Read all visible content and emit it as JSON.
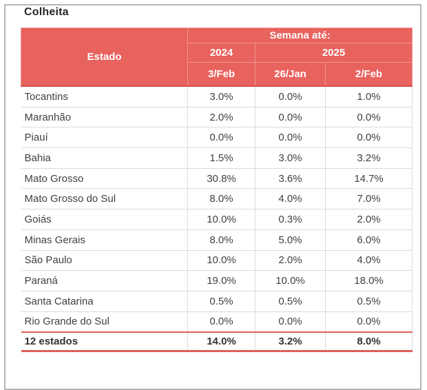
{
  "title": "Colheita",
  "colors": {
    "header_bg": "#E8625E",
    "header_divider": "#F09592",
    "accent_red_rule": "#DD5F5B",
    "grid_gray": "#DBDBDB",
    "body_text": "#404040",
    "frame_gray": "#B5B5B5"
  },
  "chart_data": {
    "type": "table",
    "title": "Colheita",
    "column_groups": {
      "semana_label": "Semana até:",
      "years": [
        "2024",
        "2025"
      ]
    },
    "columns": [
      "Estado",
      "3/Feb",
      "26/Jan",
      "2/Feb"
    ],
    "rows": [
      [
        "Tocantins",
        "3.0%",
        "0.0%",
        "1.0%"
      ],
      [
        "Maranhão",
        "2.0%",
        "0.0%",
        "0.0%"
      ],
      [
        "Piauí",
        "0.0%",
        "0.0%",
        "0.0%"
      ],
      [
        "Bahia",
        "1.5%",
        "3.0%",
        "3.2%"
      ],
      [
        "Mato Grosso",
        "30.8%",
        "3.6%",
        "14.7%"
      ],
      [
        "Mato Grosso do Sul",
        "8.0%",
        "4.0%",
        "7.0%"
      ],
      [
        "Goiás",
        "10.0%",
        "0.3%",
        "2.0%"
      ],
      [
        "Minas Gerais",
        "8.0%",
        "5.0%",
        "6.0%"
      ],
      [
        "São Paulo",
        "10.0%",
        "2.0%",
        "4.0%"
      ],
      [
        "Paraná",
        "19.0%",
        "10.0%",
        "18.0%"
      ],
      [
        "Santa Catarina",
        "0.5%",
        "0.5%",
        "0.5%"
      ],
      [
        "Rio Grande do Sul",
        "0.0%",
        "0.0%",
        "0.0%"
      ]
    ],
    "total": [
      "12 estados",
      "14.0%",
      "3.2%",
      "8.0%"
    ]
  }
}
